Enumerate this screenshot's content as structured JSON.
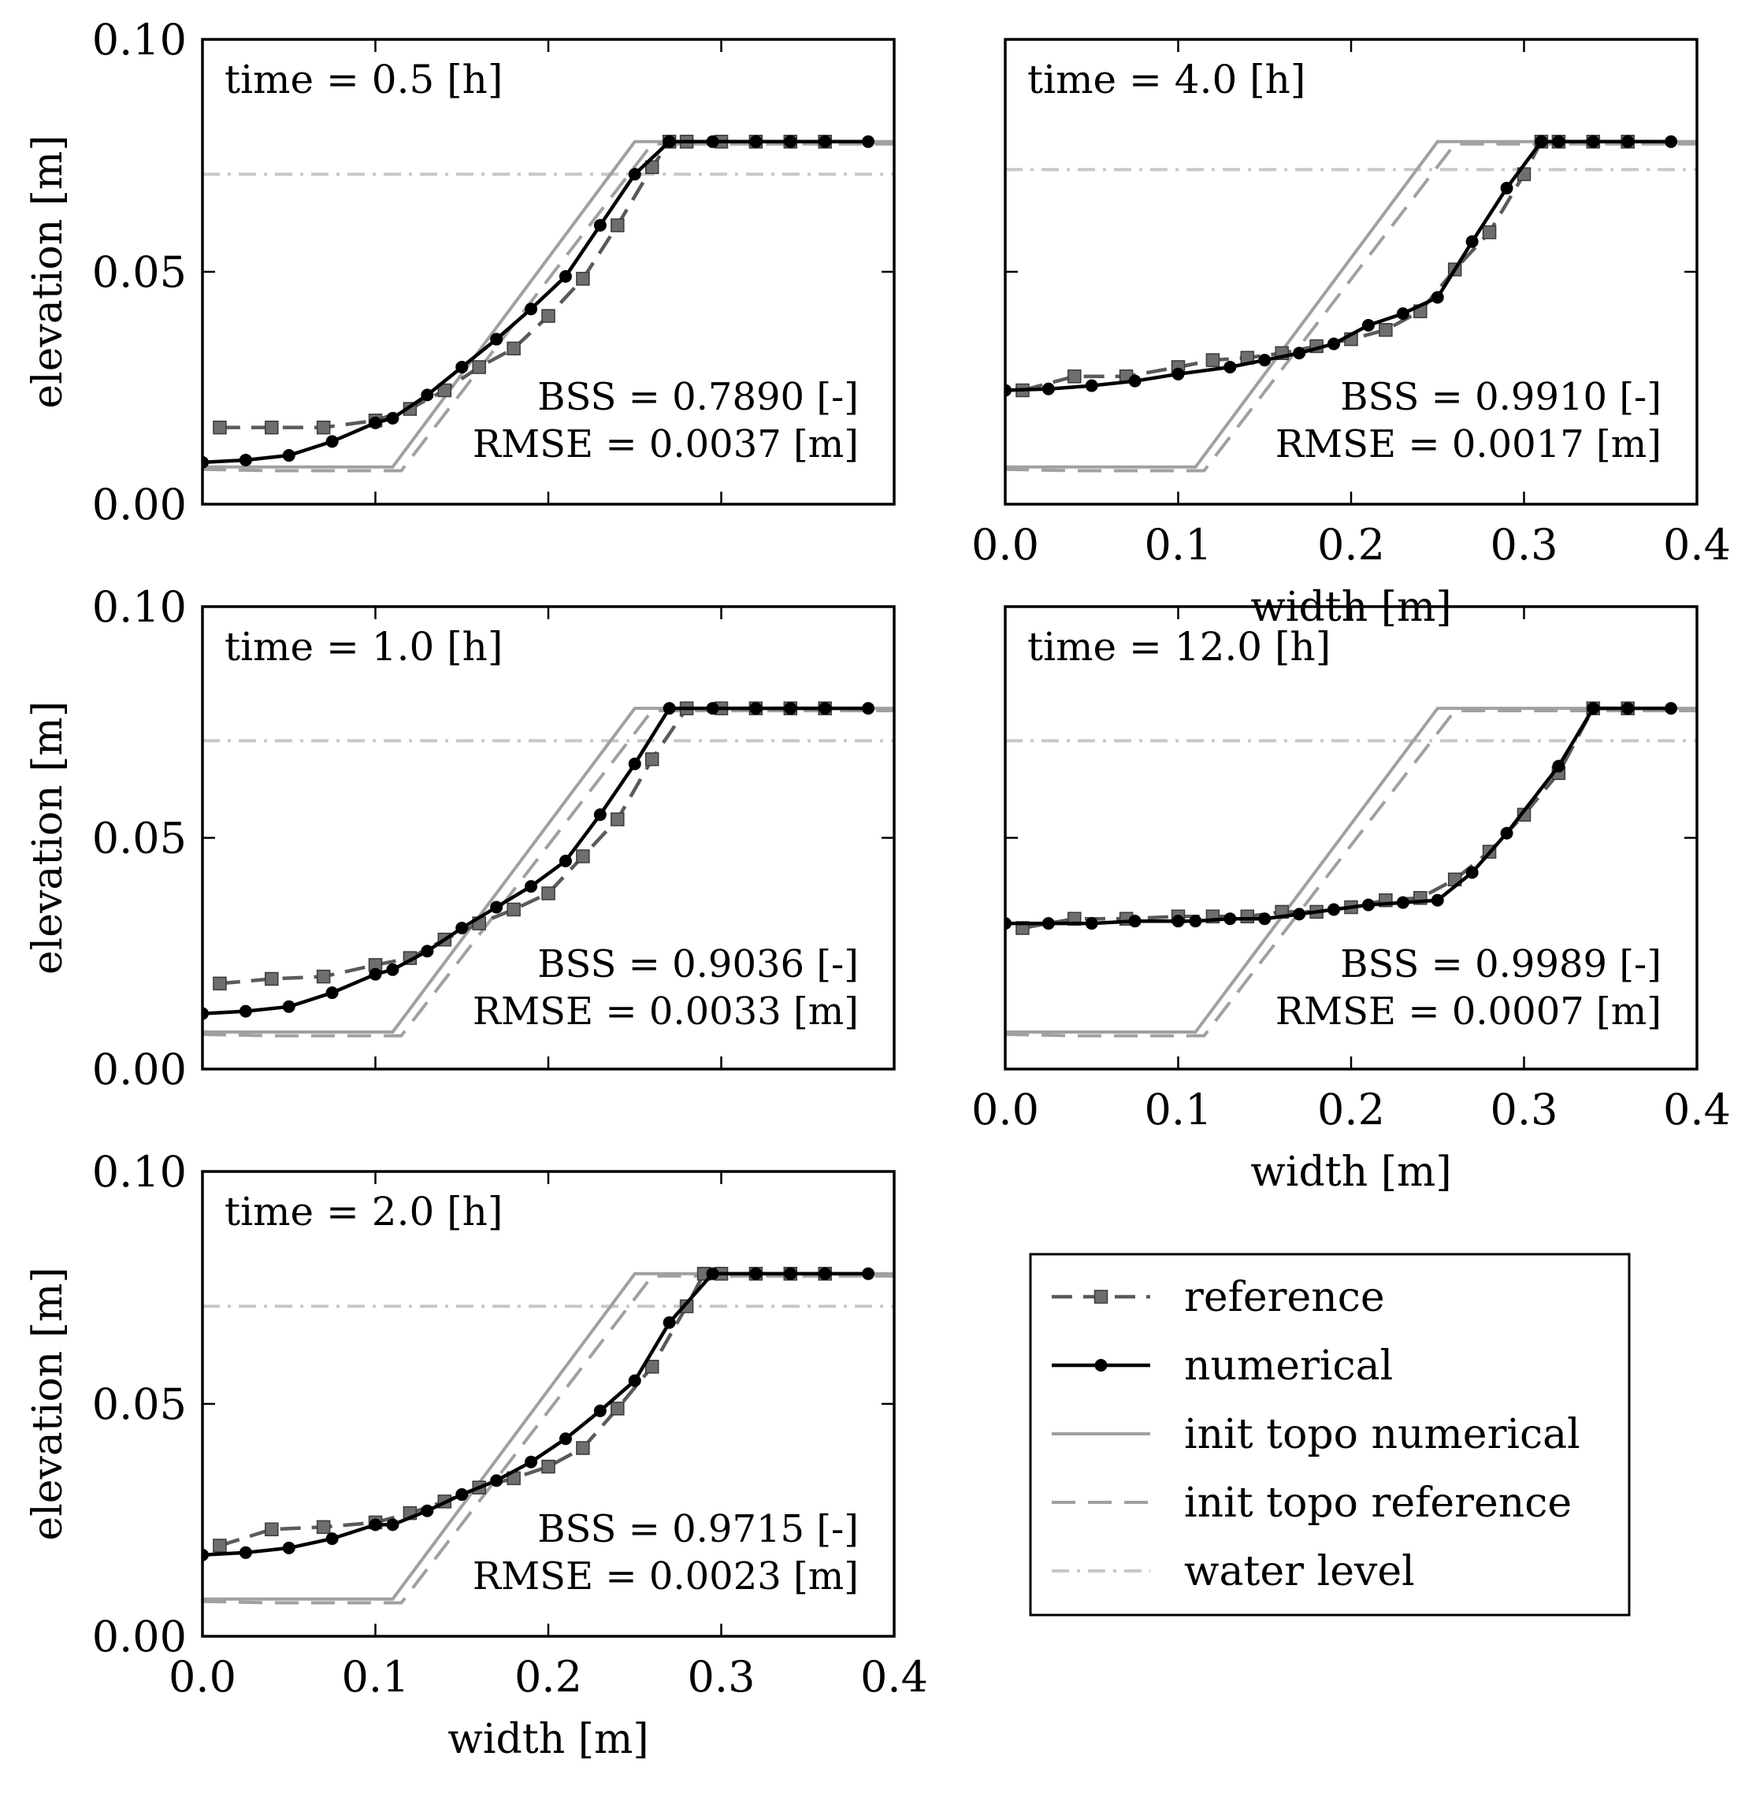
{
  "chart_data": {
    "type": "line",
    "xlim": [
      0.0,
      0.4
    ],
    "ylim": [
      0.0,
      0.1
    ],
    "x_ticks": [
      "0.0",
      "0.1",
      "0.2",
      "0.3",
      "0.4"
    ],
    "y_ticks": [
      "0.00",
      "0.05",
      "0.10"
    ],
    "xlabel": "width [m]",
    "ylabel": "elevation [m]",
    "legend": {
      "position": "bottom-right",
      "entries": [
        {
          "key": "reference",
          "label": "reference",
          "style": "dashed-square",
          "color": "#5a5a5a"
        },
        {
          "key": "numerical",
          "label": "numerical",
          "style": "solid-circle",
          "color": "#000000"
        },
        {
          "key": "init_num",
          "label": "init topo numerical",
          "style": "solid",
          "color": "#a0a0a0"
        },
        {
          "key": "init_ref",
          "label": "init topo reference",
          "style": "dashed",
          "color": "#a0a0a0"
        },
        {
          "key": "water",
          "label": "water level",
          "style": "dashdot",
          "color": "#c8c8c8"
        }
      ]
    },
    "init_topo_numerical": {
      "x": [
        0.0,
        0.11,
        0.25,
        0.4
      ],
      "y": [
        0.008,
        0.008,
        0.078,
        0.078
      ]
    },
    "init_topo_reference": {
      "x": [
        0.0,
        0.04,
        0.115,
        0.26,
        0.4
      ],
      "y": [
        0.0075,
        0.0072,
        0.0072,
        0.0775,
        0.0775
      ]
    },
    "panels": [
      {
        "title": "time = 0.5 [h]",
        "bss": "BSS = 0.7890 [-]",
        "rmse": "RMSE = 0.0037 [m]",
        "water_level": 0.071,
        "show_xticks": false,
        "show_xlabel": false,
        "reference": {
          "x": [
            0.01,
            0.04,
            0.07,
            0.1,
            0.12,
            0.14,
            0.16,
            0.18,
            0.2,
            0.22,
            0.24,
            0.26,
            0.27,
            0.28,
            0.3,
            0.32,
            0.34,
            0.36
          ],
          "y": [
            0.0165,
            0.0165,
            0.0165,
            0.018,
            0.0205,
            0.0245,
            0.0295,
            0.0335,
            0.0405,
            0.0485,
            0.06,
            0.0725,
            0.078,
            0.078,
            0.078,
            0.078,
            0.078,
            0.078
          ]
        },
        "numerical": {
          "x": [
            0.0,
            0.025,
            0.05,
            0.075,
            0.1,
            0.11,
            0.13,
            0.15,
            0.17,
            0.19,
            0.21,
            0.23,
            0.25,
            0.27,
            0.295,
            0.32,
            0.34,
            0.36,
            0.385
          ],
          "y": [
            0.009,
            0.0095,
            0.0105,
            0.0135,
            0.0175,
            0.0185,
            0.0235,
            0.0295,
            0.0355,
            0.042,
            0.049,
            0.06,
            0.071,
            0.078,
            0.078,
            0.078,
            0.078,
            0.078,
            0.078
          ]
        }
      },
      {
        "title": "time = 4.0 [h]",
        "bss": "BSS = 0.9910 [-]",
        "rmse": "RMSE = 0.0017 [m]",
        "water_level": 0.072,
        "show_xticks": true,
        "show_xlabel": true,
        "reference": {
          "x": [
            0.01,
            0.04,
            0.07,
            0.1,
            0.12,
            0.14,
            0.16,
            0.18,
            0.2,
            0.22,
            0.24,
            0.26,
            0.28,
            0.3,
            0.31,
            0.32,
            0.34,
            0.36
          ],
          "y": [
            0.0245,
            0.0275,
            0.0275,
            0.0295,
            0.031,
            0.0315,
            0.0325,
            0.034,
            0.0355,
            0.0375,
            0.0415,
            0.0505,
            0.0585,
            0.071,
            0.078,
            0.078,
            0.078,
            0.078
          ]
        },
        "numerical": {
          "x": [
            0.0,
            0.025,
            0.05,
            0.075,
            0.1,
            0.13,
            0.15,
            0.17,
            0.19,
            0.21,
            0.23,
            0.25,
            0.27,
            0.29,
            0.31,
            0.32,
            0.34,
            0.36,
            0.385
          ],
          "y": [
            0.0245,
            0.0248,
            0.0255,
            0.0265,
            0.028,
            0.0295,
            0.031,
            0.0325,
            0.0345,
            0.0385,
            0.041,
            0.0445,
            0.0565,
            0.068,
            0.078,
            0.078,
            0.078,
            0.078,
            0.078
          ]
        }
      },
      {
        "title": "time = 1.0 [h]",
        "bss": "BSS = 0.9036 [-]",
        "rmse": "RMSE = 0.0033 [m]",
        "water_level": 0.071,
        "show_xticks": false,
        "show_xlabel": false,
        "reference": {
          "x": [
            0.01,
            0.04,
            0.07,
            0.1,
            0.12,
            0.14,
            0.16,
            0.18,
            0.2,
            0.22,
            0.24,
            0.26,
            0.28,
            0.3,
            0.32,
            0.34,
            0.36
          ],
          "y": [
            0.0185,
            0.0195,
            0.02,
            0.0225,
            0.024,
            0.028,
            0.0315,
            0.0345,
            0.038,
            0.046,
            0.054,
            0.067,
            0.078,
            0.078,
            0.078,
            0.078,
            0.078
          ]
        },
        "numerical": {
          "x": [
            0.0,
            0.025,
            0.05,
            0.075,
            0.1,
            0.11,
            0.13,
            0.15,
            0.17,
            0.19,
            0.21,
            0.23,
            0.25,
            0.27,
            0.295,
            0.32,
            0.34,
            0.36,
            0.385
          ],
          "y": [
            0.012,
            0.0125,
            0.0135,
            0.0165,
            0.0205,
            0.0215,
            0.0255,
            0.0305,
            0.035,
            0.0395,
            0.045,
            0.055,
            0.066,
            0.078,
            0.078,
            0.078,
            0.078,
            0.078,
            0.078
          ]
        }
      },
      {
        "title": "time = 12.0 [h]",
        "bss": "BSS = 0.9989 [-]",
        "rmse": "RMSE = 0.0007 [m]",
        "water_level": 0.071,
        "show_xticks": true,
        "show_xlabel": true,
        "reference": {
          "x": [
            0.01,
            0.04,
            0.07,
            0.1,
            0.12,
            0.14,
            0.16,
            0.18,
            0.2,
            0.22,
            0.24,
            0.26,
            0.28,
            0.3,
            0.32,
            0.34,
            0.36
          ],
          "y": [
            0.0305,
            0.0325,
            0.0325,
            0.033,
            0.033,
            0.033,
            0.034,
            0.034,
            0.035,
            0.0365,
            0.037,
            0.041,
            0.047,
            0.055,
            0.064,
            0.078,
            0.078
          ]
        },
        "numerical": {
          "x": [
            0.0,
            0.025,
            0.05,
            0.075,
            0.1,
            0.11,
            0.13,
            0.15,
            0.17,
            0.19,
            0.21,
            0.23,
            0.25,
            0.27,
            0.29,
            0.32,
            0.34,
            0.36,
            0.385
          ],
          "y": [
            0.0315,
            0.0315,
            0.0315,
            0.032,
            0.032,
            0.032,
            0.0325,
            0.0325,
            0.0335,
            0.0345,
            0.0355,
            0.036,
            0.0365,
            0.0425,
            0.051,
            0.0655,
            0.078,
            0.078,
            0.078
          ]
        }
      },
      {
        "title": "time = 2.0 [h]",
        "bss": "BSS = 0.9715 [-]",
        "rmse": "RMSE = 0.0023 [m]",
        "water_level": 0.071,
        "show_xticks": true,
        "show_xlabel": true,
        "reference": {
          "x": [
            0.01,
            0.04,
            0.07,
            0.1,
            0.12,
            0.14,
            0.16,
            0.18,
            0.2,
            0.22,
            0.24,
            0.26,
            0.28,
            0.29,
            0.3,
            0.32,
            0.34,
            0.36
          ],
          "y": [
            0.0195,
            0.023,
            0.0235,
            0.0245,
            0.0265,
            0.029,
            0.032,
            0.034,
            0.0365,
            0.0405,
            0.049,
            0.058,
            0.071,
            0.078,
            0.078,
            0.078,
            0.078,
            0.078
          ]
        },
        "numerical": {
          "x": [
            0.0,
            0.025,
            0.05,
            0.075,
            0.1,
            0.11,
            0.13,
            0.15,
            0.17,
            0.19,
            0.21,
            0.23,
            0.25,
            0.27,
            0.295,
            0.32,
            0.34,
            0.36,
            0.385
          ],
          "y": [
            0.0175,
            0.018,
            0.019,
            0.021,
            0.024,
            0.024,
            0.027,
            0.0305,
            0.0335,
            0.0375,
            0.0425,
            0.0485,
            0.055,
            0.0675,
            0.078,
            0.078,
            0.078,
            0.078,
            0.078
          ]
        }
      }
    ]
  },
  "colors": {
    "reference": "#5a5a5a",
    "reference_marker": "#6e6e6e",
    "numerical": "#000000",
    "init_topo": "#a0a0a0",
    "water_level": "#c8c8c8"
  }
}
